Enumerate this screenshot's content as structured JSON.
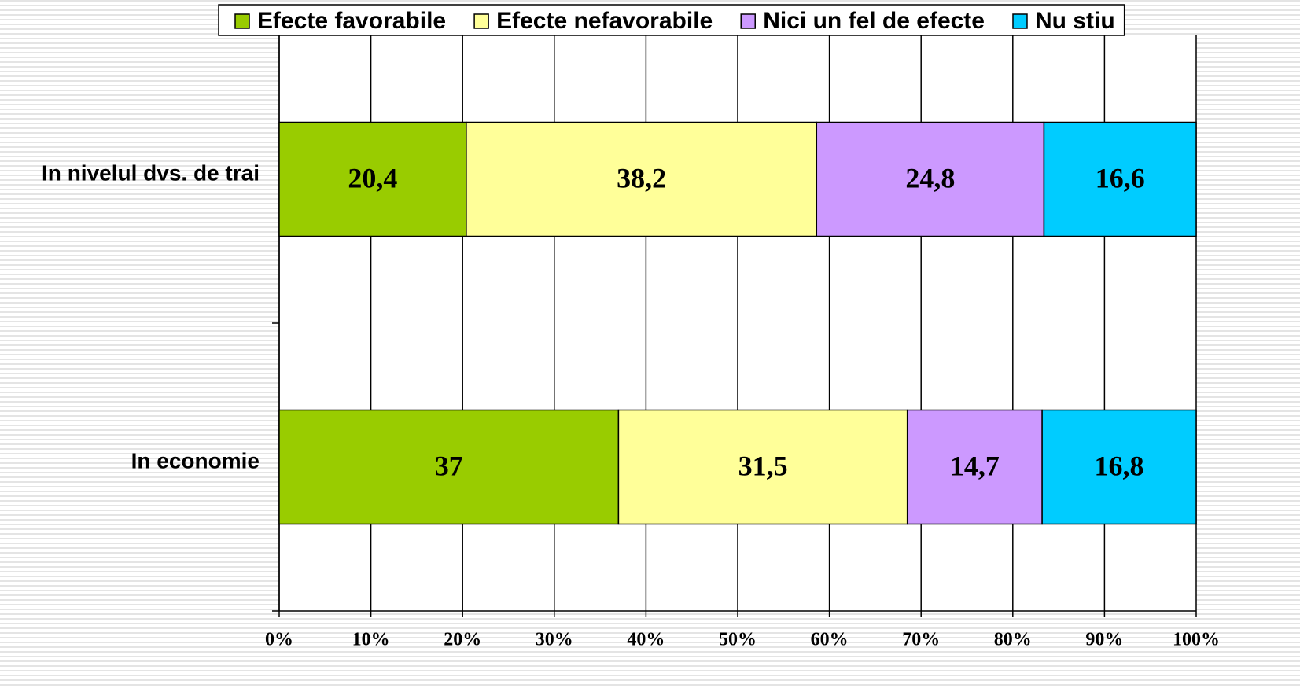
{
  "chart_data": {
    "type": "stacked-barh",
    "categories": [
      "In nivelul dvs. de trai",
      "In economie"
    ],
    "series": [
      {
        "name": "Efecte favorabile",
        "color": "#99cc00",
        "values": [
          20.4,
          37
        ],
        "value_labels": [
          "20,4",
          "37"
        ]
      },
      {
        "name": "Efecte nefavorabile",
        "color": "#ffff99",
        "values": [
          38.2,
          31.5
        ],
        "value_labels": [
          "38,2",
          "31,5"
        ]
      },
      {
        "name": "Nici un fel de efecte",
        "color": "#cc99ff",
        "values": [
          24.8,
          14.7
        ],
        "value_labels": [
          "24,8",
          "14,7"
        ]
      },
      {
        "name": "Nu stiu",
        "color": "#00ccff",
        "values": [
          16.6,
          16.8
        ],
        "value_labels": [
          "16,6",
          "16,8"
        ]
      }
    ],
    "xlim": [
      0,
      100
    ],
    "xticks": [
      {
        "value": 0,
        "label": "0%"
      },
      {
        "value": 10,
        "label": "10%"
      },
      {
        "value": 20,
        "label": "20%"
      },
      {
        "value": 30,
        "label": "30%"
      },
      {
        "value": 40,
        "label": "40%"
      },
      {
        "value": 50,
        "label": "50%"
      },
      {
        "value": 60,
        "label": "60%"
      },
      {
        "value": 70,
        "label": "70%"
      },
      {
        "value": 80,
        "label": "80%"
      },
      {
        "value": 90,
        "label": "90%"
      },
      {
        "value": 100,
        "label": "100%"
      }
    ],
    "grid": true,
    "legend": "top"
  }
}
